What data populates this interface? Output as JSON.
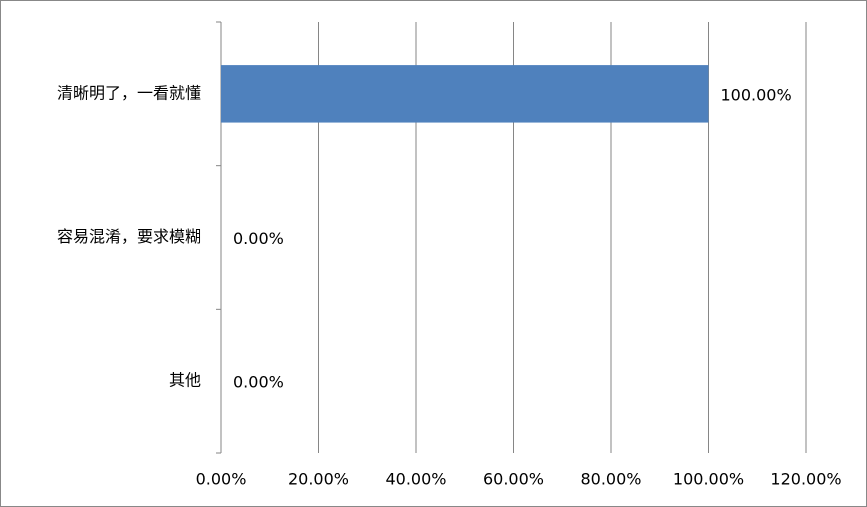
{
  "chart_data": {
    "type": "bar",
    "orientation": "horizontal",
    "categories": [
      "清晰明了，一看就懂",
      "容易混淆，要求模糊",
      "其他"
    ],
    "values": [
      100,
      0,
      0
    ],
    "value_labels": [
      "100.00%",
      "0.00%",
      "0.00%"
    ],
    "color": "#4f81bd",
    "xlim": [
      0,
      120
    ],
    "xticks": [
      {
        "value": 0,
        "label": "0.00%"
      },
      {
        "value": 20,
        "label": "20.00%"
      },
      {
        "value": 40,
        "label": "40.00%"
      },
      {
        "value": 60,
        "label": "60.00%"
      },
      {
        "value": 80,
        "label": "80.00%"
      },
      {
        "value": 100,
        "label": "100.00%"
      },
      {
        "value": 120,
        "label": "120.00%"
      }
    ],
    "grid": true
  }
}
